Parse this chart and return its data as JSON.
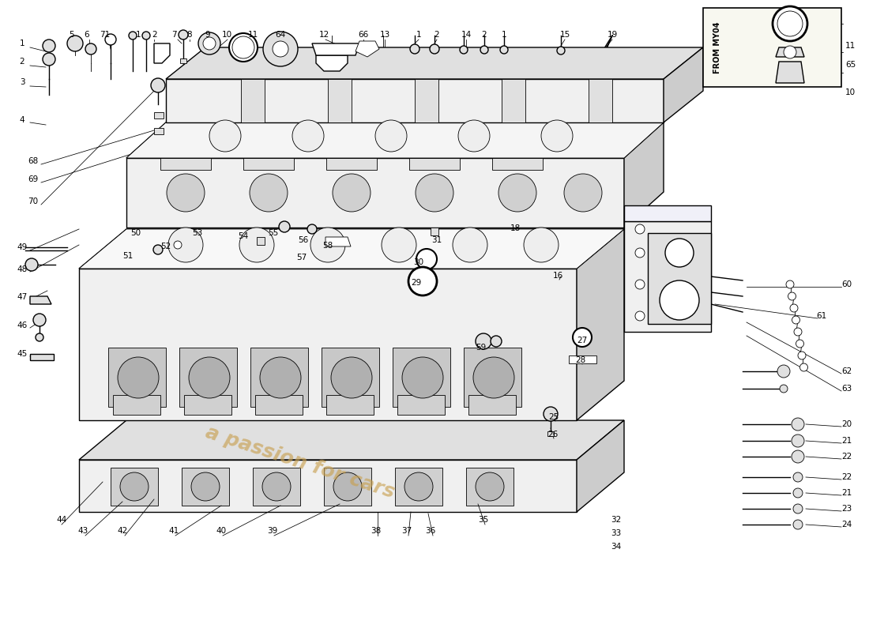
{
  "bg_color": "#ffffff",
  "line_color": "#000000",
  "lw_main": 1.0,
  "lw_thin": 0.6,
  "lw_leader": 0.55,
  "label_fontsize": 7.5,
  "watermark_text": "a passion for cars",
  "watermark_color": "#c8a050",
  "from_my04_text": "FROM MY04",
  "figsize": [
    11.0,
    8.0
  ],
  "dpi": 100,
  "top_labels": [
    [
      90,
      756,
      "5"
    ],
    [
      110,
      756,
      "6"
    ],
    [
      133,
      756,
      "71"
    ],
    [
      175,
      756,
      "1"
    ],
    [
      196,
      756,
      "2"
    ],
    [
      220,
      756,
      "7"
    ],
    [
      240,
      756,
      "8"
    ],
    [
      263,
      756,
      "9"
    ],
    [
      287,
      756,
      "10"
    ],
    [
      320,
      756,
      "11"
    ],
    [
      355,
      756,
      "64"
    ],
    [
      410,
      756,
      "12"
    ],
    [
      460,
      756,
      "66"
    ],
    [
      487,
      756,
      "13"
    ],
    [
      530,
      756,
      "1"
    ],
    [
      553,
      756,
      "2"
    ],
    [
      590,
      756,
      "14"
    ],
    [
      613,
      756,
      "2"
    ],
    [
      638,
      756,
      "1"
    ],
    [
      715,
      756,
      "15"
    ],
    [
      775,
      756,
      "19"
    ]
  ],
  "left_labels": [
    [
      28,
      745,
      "1"
    ],
    [
      28,
      722,
      "2"
    ],
    [
      28,
      696,
      "3"
    ],
    [
      28,
      648,
      "4"
    ],
    [
      42,
      596,
      "68"
    ],
    [
      42,
      573,
      "69"
    ],
    [
      42,
      545,
      "70"
    ],
    [
      28,
      487,
      "49"
    ],
    [
      28,
      459,
      "48"
    ],
    [
      28,
      424,
      "47"
    ],
    [
      28,
      388,
      "46"
    ],
    [
      28,
      352,
      "45"
    ]
  ],
  "bottom_left_labels": [
    [
      78,
      142,
      "44"
    ],
    [
      105,
      128,
      "43"
    ],
    [
      155,
      128,
      "42"
    ],
    [
      220,
      128,
      "41"
    ],
    [
      280,
      128,
      "40"
    ],
    [
      345,
      128,
      "39"
    ]
  ],
  "bottom_right_labels": [
    [
      476,
      128,
      "38"
    ],
    [
      515,
      128,
      "37"
    ],
    [
      545,
      128,
      "36"
    ],
    [
      612,
      142,
      "35"
    ]
  ],
  "lower_right_labels": [
    [
      780,
      142,
      "32"
    ],
    [
      780,
      125,
      "33"
    ],
    [
      780,
      108,
      "34"
    ]
  ],
  "mid_labels": [
    [
      172,
      505,
      "50"
    ],
    [
      162,
      476,
      "51"
    ],
    [
      210,
      488,
      "52"
    ],
    [
      250,
      505,
      "53"
    ],
    [
      308,
      501,
      "54"
    ],
    [
      346,
      505,
      "55"
    ],
    [
      384,
      496,
      "56"
    ],
    [
      382,
      474,
      "57"
    ],
    [
      415,
      489,
      "58"
    ],
    [
      553,
      496,
      "31"
    ],
    [
      530,
      468,
      "30"
    ],
    [
      527,
      442,
      "29"
    ],
    [
      652,
      511,
      "18"
    ],
    [
      706,
      451,
      "16"
    ],
    [
      737,
      369,
      "27"
    ],
    [
      735,
      344,
      "28"
    ],
    [
      701,
      272,
      "25"
    ],
    [
      700,
      250,
      "26"
    ],
    [
      609,
      360,
      "59"
    ]
  ],
  "right_labels": [
    [
      1072,
      440,
      "60"
    ],
    [
      1040,
      400,
      "61"
    ],
    [
      1072,
      330,
      "62"
    ],
    [
      1072,
      308,
      "63"
    ],
    [
      1072,
      263,
      "20"
    ],
    [
      1072,
      242,
      "21"
    ],
    [
      1072,
      222,
      "22"
    ],
    [
      1072,
      196,
      "22"
    ],
    [
      1072,
      176,
      "21"
    ],
    [
      1072,
      156,
      "23"
    ],
    [
      1072,
      136,
      "24"
    ]
  ],
  "inset_labels": [
    [
      1070,
      742,
      "11"
    ],
    [
      1070,
      718,
      "65"
    ],
    [
      1070,
      683,
      "10"
    ]
  ]
}
